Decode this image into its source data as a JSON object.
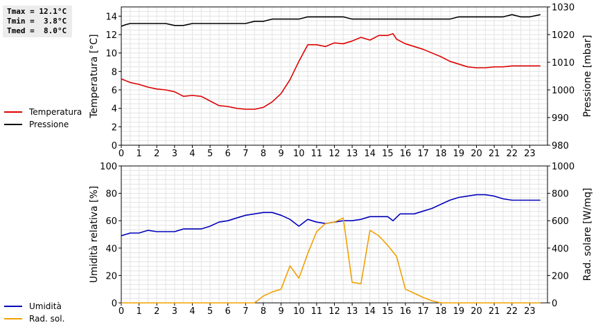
{
  "stats": {
    "tmax": "Tmax = 12.1°C",
    "tmin": "Tmin =  3.8°C",
    "tmed": "Tmed =  8.0°C"
  },
  "legend_top": [
    {
      "label": "Temperatura",
      "color": "#dd0000"
    },
    {
      "label": "Pressione",
      "color": "#000000"
    }
  ],
  "legend_bottom": [
    {
      "label": "Umidità",
      "color": "#0000bb"
    },
    {
      "label": "Rad. sol.",
      "color": "#f0a000"
    }
  ],
  "chart_data": [
    {
      "type": "line",
      "ylabel": "Temperatura [°C]",
      "y2label": "Pressione [mbar]",
      "xlim": [
        0,
        24
      ],
      "ylim": [
        0,
        15
      ],
      "y2lim": [
        980,
        1030
      ],
      "xticks": [
        "0",
        "1",
        "2",
        "3",
        "4",
        "5",
        "6",
        "7",
        "8",
        "9",
        "10",
        "11",
        "12",
        "13",
        "14",
        "15",
        "16",
        "17",
        "18",
        "19",
        "20",
        "21",
        "22",
        "23"
      ],
      "yticks": [
        "0",
        "2",
        "4",
        "6",
        "8",
        "10",
        "12",
        "14"
      ],
      "y2ticks": [
        "980",
        "990",
        "1000",
        "1010",
        "1020",
        "1030"
      ],
      "grid": true,
      "series": [
        {
          "name": "Temperatura",
          "color": "#dd0000",
          "axis": "left",
          "x": [
            0,
            0.25,
            0.5,
            1,
            1.5,
            2,
            2.5,
            3,
            3.5,
            4,
            4.5,
            5,
            5.5,
            6,
            6.5,
            7,
            7.5,
            8,
            8.5,
            9,
            9.5,
            10,
            10.5,
            11,
            11.5,
            12,
            12.5,
            13,
            13.5,
            14,
            14.5,
            15,
            15.3,
            15.5,
            16,
            16.5,
            17,
            17.5,
            18,
            18.5,
            19,
            19.5,
            20,
            20.5,
            21,
            21.5,
            22,
            22.5,
            23,
            23.6
          ],
          "y": [
            7.2,
            7.0,
            6.8,
            6.6,
            6.3,
            6.1,
            6.0,
            5.8,
            5.3,
            5.4,
            5.3,
            4.8,
            4.3,
            4.2,
            4.0,
            3.9,
            3.9,
            4.1,
            4.7,
            5.6,
            7.1,
            9.1,
            10.9,
            10.9,
            10.7,
            11.1,
            11.0,
            11.3,
            11.7,
            11.4,
            11.9,
            11.9,
            12.1,
            11.5,
            11.0,
            10.7,
            10.4,
            10.0,
            9.6,
            9.1,
            8.8,
            8.5,
            8.4,
            8.4,
            8.5,
            8.5,
            8.6,
            8.6,
            8.6,
            8.6
          ]
        },
        {
          "name": "Pressione",
          "color": "#000000",
          "axis": "right",
          "x": [
            0,
            0.25,
            0.5,
            1,
            1.5,
            2,
            2.5,
            3,
            3.5,
            4,
            4.5,
            5,
            5.5,
            6,
            6.5,
            7,
            7.5,
            8,
            8.5,
            9,
            9.5,
            10,
            10.5,
            11,
            11.5,
            12,
            12.5,
            13,
            13.5,
            14,
            14.5,
            15,
            15.5,
            16,
            16.5,
            17,
            17.5,
            18,
            18.5,
            19,
            19.5,
            20,
            20.5,
            21,
            21.5,
            22,
            22.5,
            23,
            23.6
          ],
          "y": [
            1023,
            1023.6,
            1024,
            1024,
            1024,
            1024,
            1024,
            1023.3,
            1023.3,
            1024,
            1024,
            1024,
            1024,
            1024,
            1024,
            1024,
            1024.8,
            1024.8,
            1025.6,
            1025.6,
            1025.6,
            1025.6,
            1026.4,
            1026.4,
            1026.4,
            1026.4,
            1026.4,
            1025.6,
            1025.6,
            1025.6,
            1025.6,
            1025.6,
            1025.6,
            1025.6,
            1025.6,
            1025.6,
            1025.6,
            1025.6,
            1025.6,
            1026.4,
            1026.4,
            1026.4,
            1026.4,
            1026.4,
            1026.4,
            1027.2,
            1026.4,
            1026.4,
            1027.2
          ]
        }
      ]
    },
    {
      "type": "line",
      "ylabel": "Umidità relativa [%]",
      "y2label": "Rad. solare [W/mq]",
      "xlim": [
        0,
        24
      ],
      "ylim": [
        0,
        100
      ],
      "y2lim": [
        0,
        1000
      ],
      "xticks": [
        "0",
        "1",
        "2",
        "3",
        "4",
        "5",
        "6",
        "7",
        "8",
        "9",
        "10",
        "11",
        "12",
        "13",
        "14",
        "15",
        "16",
        "17",
        "18",
        "19",
        "20",
        "21",
        "22",
        "23"
      ],
      "yticks": [
        "0",
        "20",
        "40",
        "60",
        "80",
        "100"
      ],
      "y2ticks": [
        "0",
        "200",
        "400",
        "600",
        "800",
        "1000"
      ],
      "grid": true,
      "series": [
        {
          "name": "Umidità",
          "color": "#0000bb",
          "axis": "left",
          "x": [
            0,
            0.5,
            1,
            1.5,
            2,
            2.5,
            3,
            3.5,
            4,
            4.5,
            5,
            5.5,
            6,
            6.5,
            7,
            7.5,
            8,
            8.5,
            9,
            9.5,
            10,
            10.5,
            11,
            11.5,
            12,
            12.5,
            13,
            13.5,
            14,
            14.5,
            15,
            15.3,
            15.7,
            16,
            16.5,
            17,
            17.5,
            18,
            18.5,
            19,
            19.5,
            20,
            20.5,
            21,
            21.5,
            22,
            22.5,
            23,
            23.6
          ],
          "y": [
            49,
            51,
            51,
            53,
            52,
            52,
            52,
            54,
            54,
            54,
            56,
            59,
            60,
            62,
            64,
            65,
            66,
            66,
            64,
            61,
            56,
            61,
            59,
            58,
            59,
            60,
            60,
            61,
            63,
            63,
            63,
            60,
            65,
            65,
            65,
            67,
            69,
            72,
            75,
            77,
            78,
            79,
            79,
            78,
            76,
            75,
            75,
            75,
            75
          ]
        },
        {
          "name": "Rad. sol.",
          "color": "#f0a000",
          "axis": "right",
          "x": [
            0,
            1,
            2,
            3,
            4,
            5,
            6,
            7,
            7.5,
            8,
            8.5,
            9,
            9.5,
            10,
            10.5,
            11,
            11.5,
            12,
            12.5,
            13,
            13.5,
            14,
            14.5,
            15,
            15.5,
            16,
            16.5,
            17,
            17.5,
            18,
            19,
            20,
            21,
            22,
            23,
            23.6
          ],
          "y": [
            0,
            0,
            0,
            0,
            0,
            0,
            0,
            0,
            0,
            50,
            80,
            100,
            270,
            180,
            360,
            520,
            580,
            590,
            620,
            150,
            140,
            530,
            490,
            420,
            340,
            100,
            70,
            40,
            15,
            0,
            0,
            0,
            0,
            0,
            0,
            0
          ]
        }
      ]
    }
  ]
}
